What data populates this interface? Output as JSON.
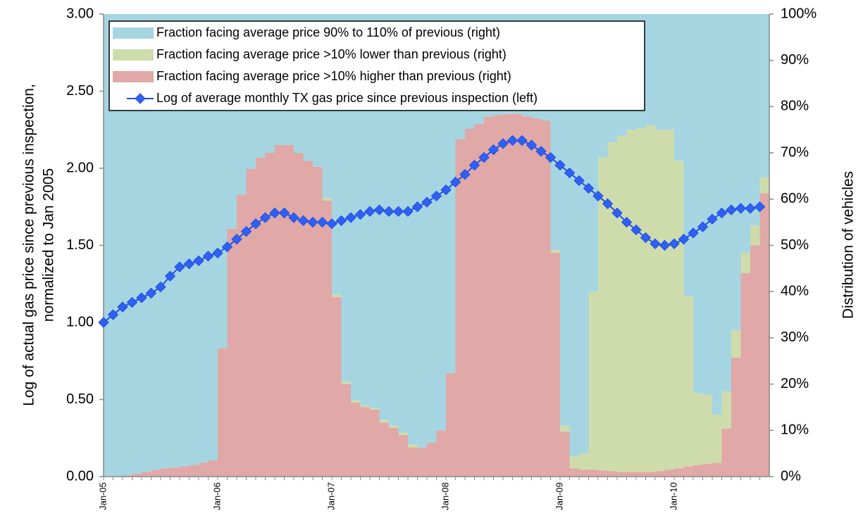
{
  "chart_data": {
    "type": "combo",
    "ylabel": [
      "Log of actual gas price since previous inspection,",
      "normalized to Jan 2005"
    ],
    "y2label": "Distribution of vehicles",
    "categories": [
      "Jan-05",
      null,
      null,
      null,
      null,
      null,
      null,
      null,
      null,
      null,
      null,
      null,
      "Jan-06",
      null,
      null,
      null,
      null,
      null,
      null,
      null,
      null,
      null,
      null,
      null,
      "Jan-07",
      null,
      null,
      null,
      null,
      null,
      null,
      null,
      null,
      null,
      null,
      null,
      "Jan-08",
      null,
      null,
      null,
      null,
      null,
      null,
      null,
      null,
      null,
      null,
      null,
      "Jan-09",
      null,
      null,
      null,
      null,
      null,
      null,
      null,
      null,
      null,
      null,
      null,
      "Jan-10",
      null,
      null,
      null,
      null,
      null,
      null,
      null,
      null,
      null
    ],
    "ylim": [
      0,
      3
    ],
    "yticks": [
      {
        "value": 0,
        "label": "0.00"
      },
      {
        "value": 0.5,
        "label": "0.50"
      },
      {
        "value": 1,
        "label": "1.00"
      },
      {
        "value": 1.5,
        "label": "1.50"
      },
      {
        "value": 2,
        "label": "2.00"
      },
      {
        "value": 2.5,
        "label": "2.50"
      },
      {
        "value": 3,
        "label": "3.00"
      }
    ],
    "y2lim": [
      0,
      100
    ],
    "y2ticks": [
      {
        "value": 0,
        "label": "0%"
      },
      {
        "value": 10,
        "label": "10%"
      },
      {
        "value": 20,
        "label": "20%"
      },
      {
        "value": 30,
        "label": "30%"
      },
      {
        "value": 40,
        "label": "40%"
      },
      {
        "value": 50,
        "label": "50%"
      },
      {
        "value": 60,
        "label": "60%"
      },
      {
        "value": 70,
        "label": "70%"
      },
      {
        "value": 80,
        "label": "80%"
      },
      {
        "value": 90,
        "label": "90%"
      },
      {
        "value": 100,
        "label": "100%"
      }
    ],
    "legend": "top-left",
    "series": [
      {
        "name": "Fraction facing average price 90% to 110% of previous (right)",
        "type": "area",
        "axis": "y2",
        "color": "#a6d5e2",
        "values": [
          100,
          100,
          99.7,
          99.4,
          99,
          98.5,
          98.2,
          98,
          97.8,
          97.5,
          97,
          96.5,
          72.3,
          46.4,
          39,
          33.5,
          31,
          30,
          28.3,
          28.3,
          30,
          31.7,
          33,
          39.7,
          60.6,
          79.4,
          83.5,
          84.6,
          85.2,
          87.8,
          89,
          90.5,
          93,
          93.7,
          92.7,
          90,
          77.6,
          27,
          24.8,
          23.7,
          22.2,
          21.8,
          21.6,
          21.6,
          22.1,
          22.5,
          23,
          51,
          89,
          95.6,
          95,
          60,
          31,
          27.7,
          26.3,
          25,
          24.7,
          24,
          25,
          25,
          31.7,
          61,
          82,
          82.3,
          86.6,
          81.6,
          68.3,
          51.6,
          45.7,
          35.3
        ]
      },
      {
        "name": "Fraction facing average price >10% lower than previous (right)",
        "type": "area",
        "axis": "y2",
        "color": "#cedcac",
        "values": [
          0,
          0,
          0,
          0,
          0,
          0,
          0,
          0,
          0,
          0,
          0,
          0,
          0,
          0,
          0,
          0,
          0,
          0,
          0,
          0,
          0,
          0,
          0,
          0.6,
          0.6,
          0.6,
          0.5,
          0.4,
          0.3,
          0.5,
          0.5,
          0.5,
          0.7,
          0,
          0,
          0,
          0,
          0,
          0,
          0,
          0,
          0,
          0,
          0,
          0,
          0,
          0,
          0.6,
          1.3,
          2.6,
          3.5,
          38.5,
          67.7,
          71.1,
          72.7,
          74,
          74.3,
          75,
          73.8,
          73.5,
          66.5,
          36.8,
          15.5,
          14.9,
          10.4,
          8,
          6,
          4.4,
          4.3,
          3.4
        ]
      },
      {
        "name": "Fraction facing average price >10% higher than previous (right)",
        "type": "area",
        "axis": "y2",
        "color": "#e0a8a6",
        "values": [
          0,
          0,
          0.3,
          0.6,
          1,
          1.5,
          1.8,
          2,
          2.2,
          2.5,
          3,
          3.5,
          27.7,
          53.6,
          61,
          66.5,
          69,
          70,
          71.7,
          71.7,
          70,
          68.3,
          67,
          59.7,
          38.8,
          20,
          16,
          15,
          14.5,
          11.7,
          10.5,
          9,
          6.3,
          6.3,
          7.3,
          10,
          22.4,
          73,
          75.2,
          76.3,
          77.8,
          78.2,
          78.4,
          78.4,
          77.9,
          77.5,
          77,
          48.4,
          9.7,
          1.8,
          1.5,
          1.5,
          1.3,
          1.2,
          1,
          1,
          1,
          1,
          1.2,
          1.5,
          1.8,
          2.2,
          2.5,
          2.8,
          3,
          10.4,
          25.7,
          44,
          50,
          61.3
        ]
      },
      {
        "name": "Log of average monthly TX gas price since previous inspection (left)",
        "type": "line",
        "axis": "y",
        "color": "#1f4fe6",
        "values": [
          1.0,
          1.05,
          1.1,
          1.13,
          1.16,
          1.19,
          1.23,
          1.3,
          1.36,
          1.38,
          1.4,
          1.43,
          1.45,
          1.49,
          1.54,
          1.59,
          1.64,
          1.68,
          1.71,
          1.71,
          1.68,
          1.66,
          1.65,
          1.65,
          1.64,
          1.66,
          1.68,
          1.7,
          1.72,
          1.73,
          1.72,
          1.72,
          1.72,
          1.75,
          1.78,
          1.82,
          1.86,
          1.91,
          1.96,
          2.02,
          2.07,
          2.12,
          2.16,
          2.18,
          2.18,
          2.15,
          2.11,
          2.07,
          2.02,
          1.97,
          1.92,
          1.87,
          1.82,
          1.77,
          1.71,
          1.65,
          1.6,
          1.55,
          1.51,
          1.5,
          1.51,
          1.54,
          1.58,
          1.62,
          1.67,
          1.71,
          1.73,
          1.74,
          1.74,
          1.75
        ]
      }
    ]
  }
}
